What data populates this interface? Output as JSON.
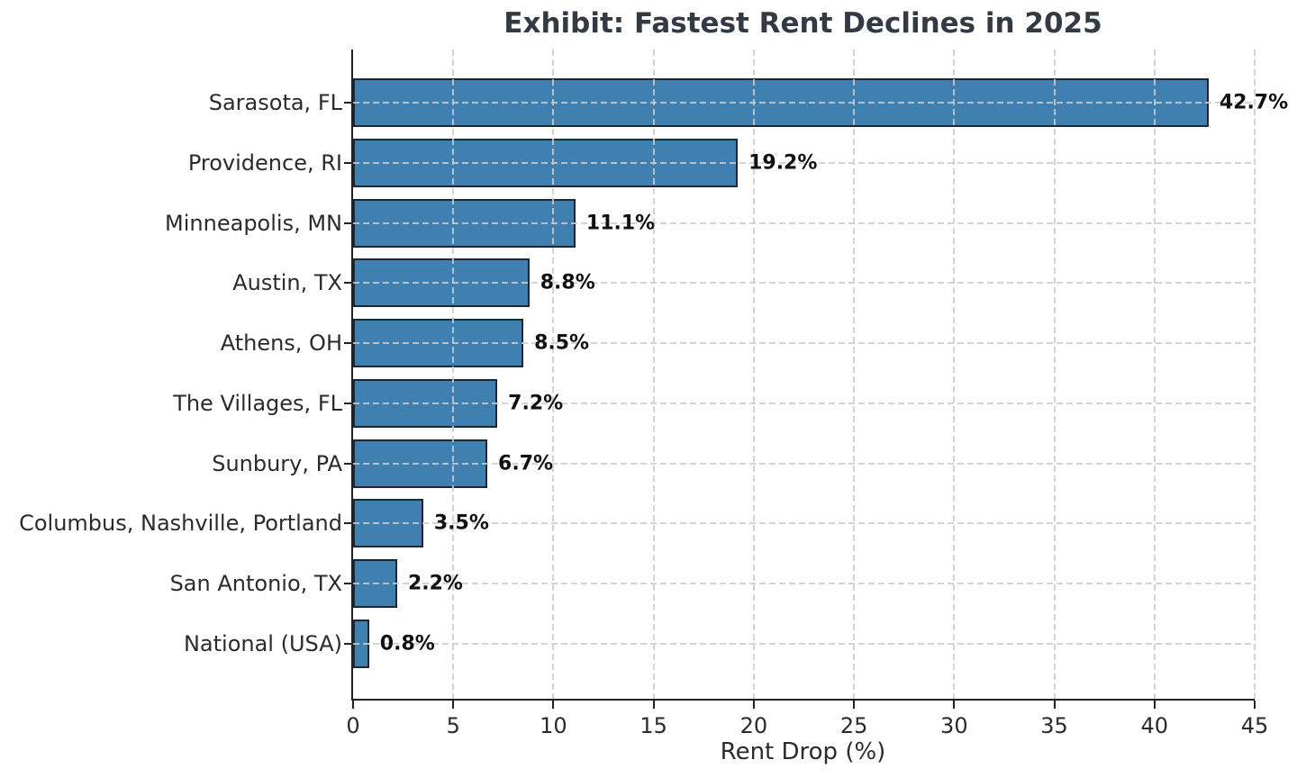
{
  "chart_data": {
    "type": "bar",
    "orientation": "horizontal",
    "title": "Exhibit: Fastest Rent Declines in 2025",
    "xlabel": "Rent Drop (%)",
    "ylabel": "",
    "categories": [
      "Sarasota, FL",
      "Providence, RI",
      "Minneapolis, MN",
      "Austin, TX",
      "Athens, OH",
      "The Villages, FL",
      "Sunbury, PA",
      "Columbus, Nashville, Portland",
      "San Antonio, TX",
      "National (USA)"
    ],
    "values": [
      42.7,
      19.2,
      11.1,
      8.8,
      8.5,
      7.2,
      6.7,
      3.5,
      2.2,
      0.8
    ],
    "value_labels": [
      "42.7%",
      "19.2%",
      "11.1%",
      "8.8%",
      "8.5%",
      "7.2%",
      "6.7%",
      "3.5%",
      "2.2%",
      "0.8%"
    ],
    "xlim": [
      0,
      45
    ],
    "xticks": [
      0,
      5,
      10,
      15,
      20,
      25,
      30,
      35,
      40,
      45
    ],
    "grid": "dashed-both",
    "legend": "none"
  },
  "colors": {
    "bar_fill": "#4080b1",
    "bar_edge": "#1c2733",
    "grid": "#cccccc",
    "axis_line": "#222222",
    "title_text": "#333a44",
    "axis_text": "#2b2b2b",
    "value_text": "#111111",
    "background": "#ffffff"
  }
}
